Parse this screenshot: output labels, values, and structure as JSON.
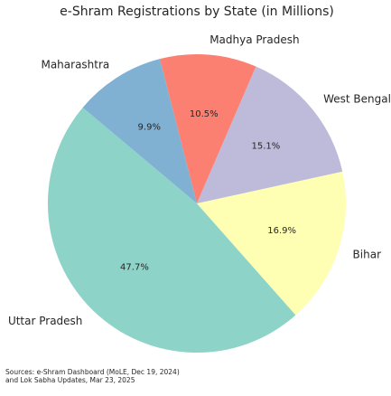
{
  "chart_data": {
    "type": "pie",
    "title": "e-Shram Registrations by State (in Millions)",
    "start_angle_deg": 140,
    "direction": "counterclockwise",
    "slices": [
      {
        "label": "Uttar Pradesh",
        "percent": 47.7,
        "percent_label": "47.7%",
        "color": "#8DD3C7"
      },
      {
        "label": "Bihar",
        "percent": 16.9,
        "percent_label": "16.9%",
        "color": "#FFFFB3"
      },
      {
        "label": "West Bengal",
        "percent": 15.1,
        "percent_label": "15.1%",
        "color": "#BEBADA"
      },
      {
        "label": "Madhya Pradesh",
        "percent": 10.5,
        "percent_label": "10.5%",
        "color": "#FB8072"
      },
      {
        "label": "Maharashtra",
        "percent": 9.9,
        "percent_label": "9.9%",
        "color": "#80B1D3"
      }
    ]
  },
  "source": {
    "line1": "Sources: e-Shram Dashboard (MoLE, Dec 19, 2024)",
    "line2": "and Lok Sabha Updates, Mar 23, 2025"
  }
}
